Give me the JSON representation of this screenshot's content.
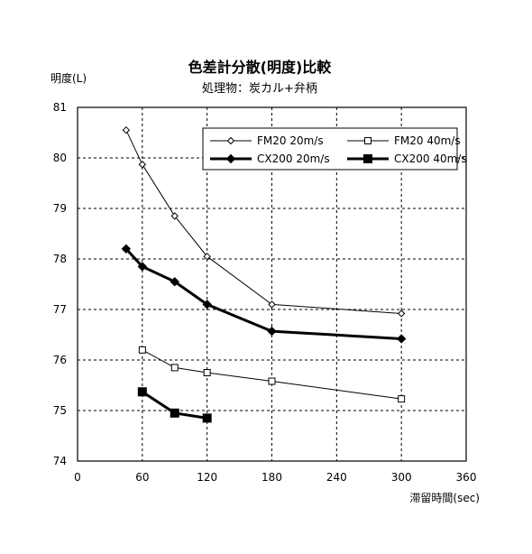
{
  "chart_data": {
    "type": "line",
    "title": "色差計分散(明度)比較",
    "subtitle": "処理物：炭カル+弁柄",
    "ylabel": "明度(L)",
    "xlabel": "滞留時間(sec)",
    "xlim": [
      0,
      360
    ],
    "ylim": [
      74,
      81
    ],
    "x_ticks": [
      0,
      60,
      120,
      180,
      240,
      300,
      360
    ],
    "y_ticks": [
      74,
      75,
      76,
      77,
      78,
      79,
      80,
      81
    ],
    "grid": true,
    "legend_position": "top-right",
    "series": [
      {
        "name": "FM20 20m/s",
        "marker": "diamond-open",
        "line": "thin",
        "x": [
          45,
          60,
          90,
          120,
          180,
          300
        ],
        "y": [
          80.55,
          79.87,
          78.85,
          78.05,
          77.1,
          76.92
        ]
      },
      {
        "name": "FM20 40m/s",
        "marker": "square-open",
        "line": "thin",
        "x": [
          60,
          90,
          120,
          180,
          300
        ],
        "y": [
          76.2,
          75.85,
          75.75,
          75.58,
          75.23
        ]
      },
      {
        "name": "CX200 20m/s",
        "marker": "diamond-filled",
        "line": "thick",
        "x": [
          45,
          60,
          90,
          120,
          180,
          300
        ],
        "y": [
          78.2,
          77.85,
          77.55,
          77.1,
          76.57,
          76.42
        ]
      },
      {
        "name": "CX200 40m/s",
        "marker": "square-filled",
        "line": "thick",
        "x": [
          60,
          90,
          120
        ],
        "y": [
          75.37,
          74.95,
          74.85
        ]
      }
    ]
  }
}
